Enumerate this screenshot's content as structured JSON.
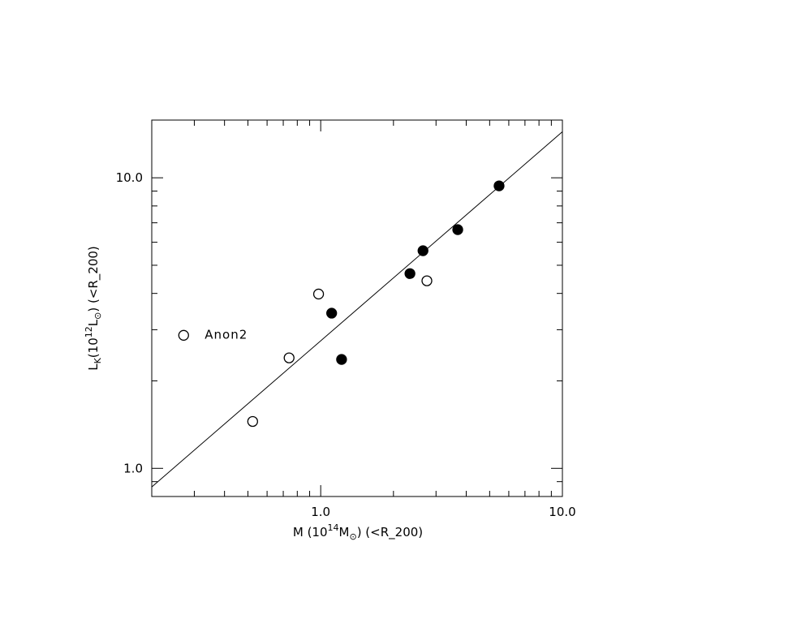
{
  "chart_data": {
    "type": "scatter",
    "xlabel_parts": [
      "M (10",
      "14",
      "M",
      "⊙",
      ") (<R_200)"
    ],
    "ylabel_parts": [
      "L",
      "K",
      "(10",
      "12",
      "L",
      "⊙",
      ") (<R_200)"
    ],
    "log_x": true,
    "log_y": true,
    "xlim": [
      0.2,
      10
    ],
    "ylim": [
      0.8,
      15.8
    ],
    "xticks": [
      {
        "value": 1,
        "label": "1.0"
      },
      {
        "value": 10,
        "label": "10.0"
      }
    ],
    "yticks": [
      {
        "value": 1,
        "label": "1.0"
      },
      {
        "value": 10,
        "label": "10.0"
      }
    ],
    "xminor_ticks": [
      0.2,
      0.3,
      0.4,
      0.5,
      0.6,
      0.7,
      0.8,
      0.9,
      2,
      3,
      4,
      5,
      6,
      7,
      8,
      9
    ],
    "yminor_ticks": [
      0.8,
      0.9,
      2,
      3,
      4,
      5,
      6,
      7,
      8,
      9
    ],
    "series": [
      {
        "marker": "open",
        "color": "#000000",
        "x": [
          0.271,
          0.523,
          0.74,
          0.98,
          2.75
        ],
        "y": [
          2.87,
          1.45,
          2.4,
          3.98,
          4.42
        ]
      },
      {
        "marker": "filled",
        "color": "#000000",
        "x": [
          1.11,
          1.22,
          2.34,
          2.65,
          3.69,
          5.47
        ],
        "y": [
          3.42,
          2.37,
          4.68,
          5.61,
          6.63,
          9.38
        ]
      }
    ],
    "fit_line": {
      "x": [
        0.2,
        10
      ],
      "y": [
        0.863,
        14.4
      ],
      "color": "#000000"
    },
    "annotations": [
      {
        "text": "Anon2",
        "series": 0,
        "point": 0
      }
    ]
  }
}
